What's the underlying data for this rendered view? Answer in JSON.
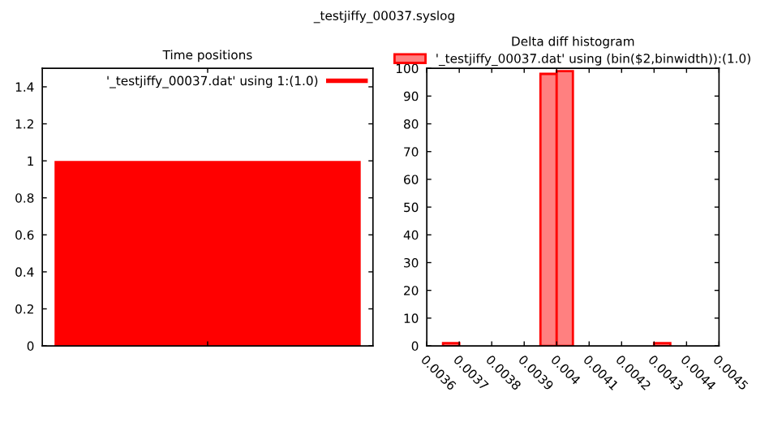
{
  "chart_data": [
    {
      "type": "bar",
      "title": "Time positions",
      "legend": "top right",
      "grid": false,
      "annotations": [
        "_testjiffy_00037.syslog"
      ],
      "series": [
        {
          "name": "'_testjiffy_00037.dat' using 1:(1.0)",
          "color": "#ff0000",
          "values": [
            1
          ]
        }
      ],
      "categories": [
        null
      ],
      "ylim": [
        0,
        1.5
      ],
      "yticks": [
        0,
        0.2,
        0.4,
        0.6,
        0.8,
        1,
        1.2,
        1.4
      ]
    },
    {
      "type": "histogram",
      "title": "Delta diff histogram",
      "legend": "top",
      "grid": false,
      "series": [
        {
          "name": "'_testjiffy_00037.dat' using (bin($2,binwidth)):(1.0)",
          "color": "#ff8080",
          "values": [
            1,
            0,
            0,
            0,
            0,
            0,
            98,
            99,
            0,
            0,
            0,
            0,
            0,
            1
          ]
        }
      ],
      "bins": [
        0.00365,
        0.0037,
        0.00375,
        0.0038,
        0.00385,
        0.0039,
        0.00395,
        0.004,
        0.00405,
        0.0041,
        0.00415,
        0.0042,
        0.00425,
        0.0043,
        0.00435
      ],
      "xlim": [
        0.0036,
        0.0045
      ],
      "xticks": [
        0.0036,
        0.0037,
        0.0038,
        0.0039,
        0.004,
        0.0041,
        0.0042,
        0.0043,
        0.0044,
        0.0045
      ],
      "ylim": [
        0,
        100
      ],
      "yticks": [
        0,
        10,
        20,
        30,
        40,
        50,
        60,
        70,
        80,
        90,
        100
      ]
    }
  ]
}
